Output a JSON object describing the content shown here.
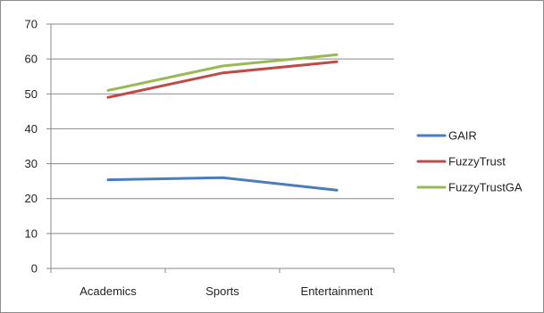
{
  "chart_data": {
    "type": "line",
    "categories": [
      "Academics",
      "Sports",
      "Entertainment"
    ],
    "series": [
      {
        "name": "GAIR",
        "values": [
          25.4,
          26.0,
          22.4
        ],
        "color": "#4a7ebb"
      },
      {
        "name": "FuzzyTrust",
        "values": [
          49.0,
          56.0,
          59.2
        ],
        "color": "#be4b48"
      },
      {
        "name": "FuzzyTrustGA",
        "values": [
          51.0,
          58.0,
          61.2
        ],
        "color": "#98b954"
      }
    ],
    "ylim": [
      0,
      70
    ],
    "yticks": [
      0,
      10,
      20,
      30,
      40,
      50,
      60,
      70
    ],
    "grid": true,
    "legend_position": "right",
    "title": "",
    "xlabel": "",
    "ylabel": ""
  }
}
